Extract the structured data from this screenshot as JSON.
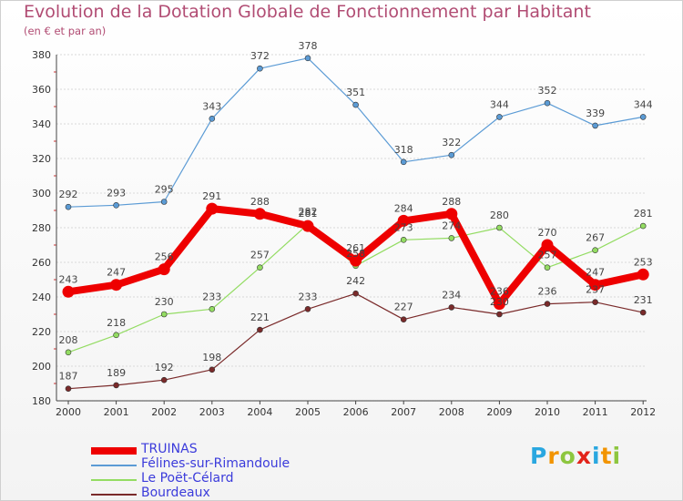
{
  "header": {
    "title": "Evolution de la Dotation Globale de Fonctionnement par Habitant",
    "subtitle": "(en € et par an)"
  },
  "chart_data": {
    "type": "line",
    "title": "Evolution de la Dotation Globale de Fonctionnement par Habitant",
    "subtitle": "(en € et par an)",
    "xlabel": "",
    "ylabel": "",
    "ylim": [
      180,
      380
    ],
    "yticks": [
      "180",
      "200",
      "220",
      "240",
      "260",
      "280",
      "300",
      "320",
      "340",
      "360",
      "380"
    ],
    "categories": [
      "2000",
      "2001",
      "2002",
      "2003",
      "2004",
      "2005",
      "2006",
      "2007",
      "2008",
      "2009",
      "2010",
      "2011",
      "2012"
    ],
    "grid": "horizontal",
    "legend_position": "bottom-left",
    "series": [
      {
        "name": "Félines-sur-Rimandoule",
        "color": "#5b9bd5",
        "values": [
          292,
          293,
          295,
          343,
          372,
          378,
          351,
          318,
          322,
          344,
          352,
          339,
          344
        ]
      },
      {
        "name": "Le Poët-Célard",
        "color": "#93dc62",
        "values": [
          208,
          218,
          230,
          233,
          257,
          282,
          258,
          273,
          274,
          280,
          257,
          267,
          281
        ]
      },
      {
        "name": "Bourdeaux",
        "color": "#7a2a2a",
        "values": [
          187,
          189,
          192,
          198,
          221,
          233,
          242,
          227,
          234,
          230,
          236,
          237,
          231
        ]
      },
      {
        "name": "TRUINAS",
        "color": "#ee0000",
        "values": [
          243,
          247,
          256,
          291,
          288,
          281,
          261,
          284,
          288,
          236,
          270,
          247,
          253
        ]
      }
    ]
  },
  "legend": {
    "items": [
      {
        "label": "TRUINAS",
        "color": "#ee0000"
      },
      {
        "label": "Félines-sur-Rimandoule",
        "color": "#5b9bd5"
      },
      {
        "label": "Le Poët-Célard",
        "color": "#93dc62"
      },
      {
        "label": "Bourdeaux",
        "color": "#7a2a2a"
      }
    ]
  },
  "brand": {
    "letters": [
      "P",
      "r",
      "o",
      "x",
      "i",
      "t",
      "i"
    ],
    "colors": [
      "#2aa7e0",
      "#f29400",
      "#8dc63f",
      "#e2231a",
      "#2aa7e0",
      "#f29400",
      "#8dc63f"
    ]
  }
}
